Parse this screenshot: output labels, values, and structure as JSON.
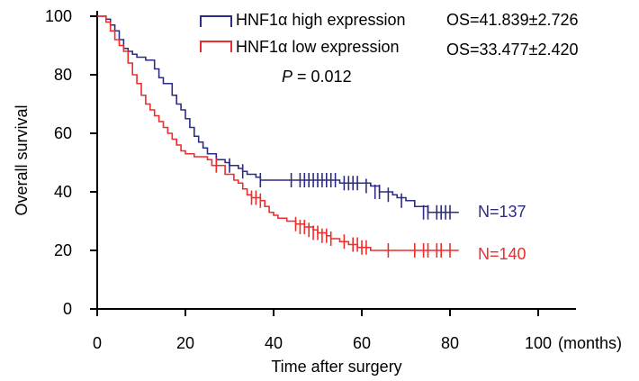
{
  "chart_data": {
    "type": "line",
    "subtype": "kaplan-meier",
    "xlabel": "Time after surgery",
    "xunit": "(months)",
    "ylabel": "Overall survival",
    "xlim": [
      0,
      110
    ],
    "ylim": [
      0,
      100
    ],
    "xticks": [
      0,
      20,
      40,
      60,
      80,
      100
    ],
    "yticks": [
      0,
      20,
      40,
      60,
      80,
      100
    ],
    "grid": false,
    "legend_position": "top-right",
    "series": [
      {
        "name": "HNF1α high expression",
        "stat": "OS=41.839±2.726",
        "n_label": "N=137",
        "color": "#2c2c84",
        "steps": [
          [
            0,
            100
          ],
          [
            2,
            99
          ],
          [
            3,
            97
          ],
          [
            4,
            95
          ],
          [
            5,
            92
          ],
          [
            6,
            89
          ],
          [
            7,
            88
          ],
          [
            8,
            87
          ],
          [
            9,
            86
          ],
          [
            11,
            85
          ],
          [
            13,
            82
          ],
          [
            14,
            79
          ],
          [
            15,
            77
          ],
          [
            17,
            73
          ],
          [
            18,
            70
          ],
          [
            19,
            68
          ],
          [
            20,
            65
          ],
          [
            21,
            62
          ],
          [
            22,
            59
          ],
          [
            23,
            57
          ],
          [
            24,
            55
          ],
          [
            25,
            53
          ],
          [
            27,
            51
          ],
          [
            29,
            50
          ],
          [
            30,
            49
          ],
          [
            32,
            48
          ],
          [
            33,
            47
          ],
          [
            34,
            46
          ],
          [
            36,
            45
          ],
          [
            37,
            44
          ],
          [
            51,
            44
          ],
          [
            55,
            43
          ],
          [
            59,
            43
          ],
          [
            62,
            42
          ],
          [
            64,
            40
          ],
          [
            67,
            39
          ],
          [
            68,
            38
          ],
          [
            70,
            37
          ],
          [
            72,
            35
          ],
          [
            75,
            33
          ],
          [
            82,
            33
          ]
        ],
        "censored": [
          [
            27,
            50
          ],
          [
            30,
            49
          ],
          [
            33,
            47
          ],
          [
            37,
            44
          ],
          [
            44,
            44
          ],
          [
            46,
            44
          ],
          [
            47,
            44
          ],
          [
            48,
            44
          ],
          [
            49,
            44
          ],
          [
            50,
            44
          ],
          [
            51,
            44
          ],
          [
            52,
            44
          ],
          [
            53,
            44
          ],
          [
            54,
            44
          ],
          [
            56,
            43
          ],
          [
            57,
            43
          ],
          [
            58,
            43
          ],
          [
            59,
            43
          ],
          [
            61,
            42
          ],
          [
            63,
            40
          ],
          [
            64,
            40
          ],
          [
            66,
            39
          ],
          [
            69,
            37
          ],
          [
            74,
            33
          ],
          [
            75,
            33
          ],
          [
            77,
            33
          ],
          [
            78,
            33
          ],
          [
            79,
            33
          ],
          [
            80,
            33
          ]
        ]
      },
      {
        "name": "HNF1α low expression",
        "stat": "OS=33.477±2.420",
        "n_label": "N=140",
        "color": "#ee2c2c",
        "steps": [
          [
            0,
            100
          ],
          [
            2,
            98
          ],
          [
            3,
            95
          ],
          [
            4,
            92
          ],
          [
            5,
            90
          ],
          [
            6,
            88
          ],
          [
            7,
            84
          ],
          [
            8,
            80
          ],
          [
            9,
            77
          ],
          [
            10,
            73
          ],
          [
            11,
            70
          ],
          [
            12,
            68
          ],
          [
            13,
            66
          ],
          [
            14,
            64
          ],
          [
            15,
            62
          ],
          [
            16,
            60
          ],
          [
            17,
            58
          ],
          [
            18,
            56
          ],
          [
            19,
            54
          ],
          [
            20,
            53
          ],
          [
            22,
            52
          ],
          [
            24,
            52
          ],
          [
            25,
            51
          ],
          [
            26,
            49
          ],
          [
            29,
            46
          ],
          [
            31,
            44
          ],
          [
            32,
            43
          ],
          [
            33,
            41
          ],
          [
            34,
            39
          ],
          [
            35,
            38
          ],
          [
            37,
            37
          ],
          [
            38,
            35
          ],
          [
            39,
            33
          ],
          [
            40,
            32
          ],
          [
            41,
            31
          ],
          [
            43,
            30
          ],
          [
            45,
            29
          ],
          [
            47,
            28
          ],
          [
            49,
            27
          ],
          [
            50,
            26
          ],
          [
            52,
            25
          ],
          [
            53,
            24
          ],
          [
            55,
            23
          ],
          [
            57,
            22
          ],
          [
            59,
            21
          ],
          [
            62,
            20
          ],
          [
            82,
            20
          ]
        ],
        "censored": [
          [
            27,
            49
          ],
          [
            35,
            38
          ],
          [
            36,
            38
          ],
          [
            37,
            37
          ],
          [
            45,
            29
          ],
          [
            46,
            28
          ],
          [
            47,
            28
          ],
          [
            48,
            27
          ],
          [
            49,
            26
          ],
          [
            50,
            26
          ],
          [
            51,
            25
          ],
          [
            52,
            25
          ],
          [
            53,
            24
          ],
          [
            56,
            23
          ],
          [
            58,
            22
          ],
          [
            59,
            22
          ],
          [
            60,
            21
          ],
          [
            61,
            21
          ],
          [
            66,
            20
          ],
          [
            72,
            20
          ],
          [
            74,
            20
          ],
          [
            75,
            20
          ],
          [
            77,
            20
          ],
          [
            78,
            20
          ],
          [
            80,
            20
          ]
        ]
      }
    ],
    "annotation": {
      "p_symbol": "P",
      "p_text": " = 0.012"
    }
  }
}
